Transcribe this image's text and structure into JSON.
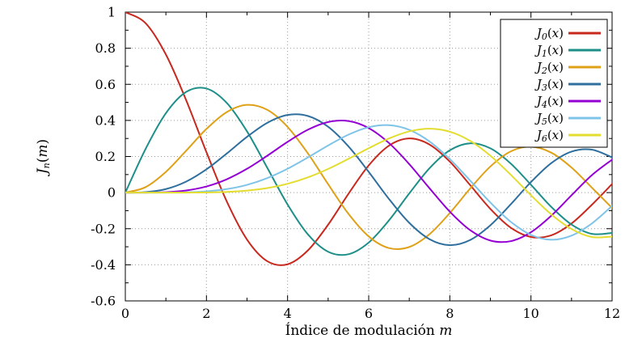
{
  "chart_data": {
    "type": "line",
    "title": "",
    "xlabel": "Índice de modulación m",
    "xlabel_text": "Índice de modulación ",
    "xlabel_var": "m",
    "ylabel": "J_n(m)",
    "xlim": [
      0,
      12
    ],
    "ylim": [
      -0.6,
      1
    ],
    "xticks": [
      0,
      2,
      4,
      6,
      8,
      10,
      12
    ],
    "xtick_labels": [
      "0",
      "2",
      "4",
      "6",
      "8",
      "10",
      "12"
    ],
    "yticks": [
      -0.6,
      -0.4,
      -0.2,
      0,
      0.2,
      0.4,
      0.6,
      0.8,
      1
    ],
    "ytick_labels": [
      "-0.6",
      "-0.4",
      "-0.2",
      "0",
      "0.2",
      "0.4",
      "0.6",
      "0.8",
      "1"
    ],
    "x_minor_ticks": [
      1,
      3,
      5,
      7,
      9,
      11
    ],
    "y_minor_ticks": [
      -0.5,
      -0.3,
      -0.1,
      0.1,
      0.3,
      0.5,
      0.7,
      0.9
    ],
    "grid": true,
    "grid_color": "#9a9a9a",
    "axis_color": "#000000",
    "legend_position": "top-right",
    "x": [
      0,
      0.5,
      1,
      1.5,
      2,
      2.5,
      3,
      3.5,
      4,
      4.5,
      5,
      5.5,
      6,
      6.5,
      7,
      7.5,
      8,
      8.5,
      9,
      9.5,
      10,
      10.5,
      11,
      11.5,
      12
    ],
    "series": [
      {
        "name": "J_0(x)",
        "sub": "0",
        "color": "#c8291e",
        "values": [
          1,
          0.9385,
          0.7652,
          0.5118,
          0.2239,
          -0.0484,
          -0.2601,
          -0.3801,
          -0.3971,
          -0.3205,
          -0.1776,
          -0.0068,
          0.1506,
          0.2601,
          0.3001,
          0.2663,
          0.1717,
          0.0419,
          -0.0903,
          -0.1939,
          -0.2459,
          -0.2366,
          -0.1712,
          -0.0677,
          0.0477
        ]
      },
      {
        "name": "J_1(x)",
        "sub": "1",
        "color": "#1d8f89",
        "values": [
          0,
          0.2423,
          0.4401,
          0.5579,
          0.5767,
          0.4971,
          0.3391,
          0.1374,
          -0.066,
          -0.2311,
          -0.3276,
          -0.3414,
          -0.2767,
          -0.1538,
          -0.0047,
          0.1352,
          0.2346,
          0.2731,
          0.2453,
          0.1613,
          0.0435,
          -0.0789,
          -0.1768,
          -0.2284,
          -0.2234
        ]
      },
      {
        "name": "J_2(x)",
        "sub": "2",
        "color": "#dfa118",
        "values": [
          0,
          0.0306,
          0.1149,
          0.2321,
          0.3528,
          0.4461,
          0.4861,
          0.4586,
          0.3641,
          0.2178,
          0.0466,
          -0.1173,
          -0.2429,
          -0.3074,
          -0.3014,
          -0.2303,
          -0.113,
          0.0223,
          0.1448,
          0.2279,
          0.2546,
          0.2216,
          0.139,
          0.0279,
          -0.0849
        ]
      },
      {
        "name": "J_3(x)",
        "sub": "3",
        "color": "#2e6f9e",
        "values": [
          0,
          0.0026,
          0.0196,
          0.061,
          0.1289,
          0.2166,
          0.3091,
          0.3868,
          0.4302,
          0.4247,
          0.3648,
          0.2561,
          0.1148,
          -0.0353,
          -0.1676,
          -0.2581,
          -0.2911,
          -0.2626,
          -0.1809,
          -0.0653,
          0.0584,
          0.1633,
          0.2273,
          0.2381,
          0.1951
        ]
      },
      {
        "name": "J_4(x)",
        "sub": "4",
        "color": "#9400d3",
        "values": [
          0,
          0.0002,
          0.0025,
          0.0118,
          0.034,
          0.0738,
          0.132,
          0.2044,
          0.2811,
          0.3484,
          0.3912,
          0.3967,
          0.3576,
          0.2748,
          0.1578,
          0.0238,
          -0.1054,
          -0.2077,
          -0.2655,
          -0.2691,
          -0.2196,
          -0.1283,
          -0.015,
          0.0963,
          0.1825
        ]
      },
      {
        "name": "J_5(x)",
        "sub": "5",
        "color": "#7fc4e8",
        "values": [
          0,
          0,
          0.0002,
          0.0018,
          0.007,
          0.0195,
          0.043,
          0.0804,
          0.1321,
          0.1947,
          0.2611,
          0.3209,
          0.3621,
          0.3736,
          0.3479,
          0.2833,
          0.1858,
          0.0671,
          -0.055,
          -0.1613,
          -0.2341,
          -0.2611,
          -0.2383,
          -0.1711,
          -0.0735
        ]
      },
      {
        "name": "J_6(x)",
        "sub": "6",
        "color": "#e3dd2f",
        "values": [
          0,
          0,
          0,
          0.0002,
          0.0012,
          0.0042,
          0.0114,
          0.0254,
          0.0491,
          0.0843,
          0.131,
          0.1868,
          0.2458,
          0.2999,
          0.3392,
          0.3541,
          0.3376,
          0.2867,
          0.2043,
          0.0993,
          -0.0145,
          -0.1203,
          -0.2016,
          -0.2458,
          -0.2437
        ]
      }
    ]
  }
}
